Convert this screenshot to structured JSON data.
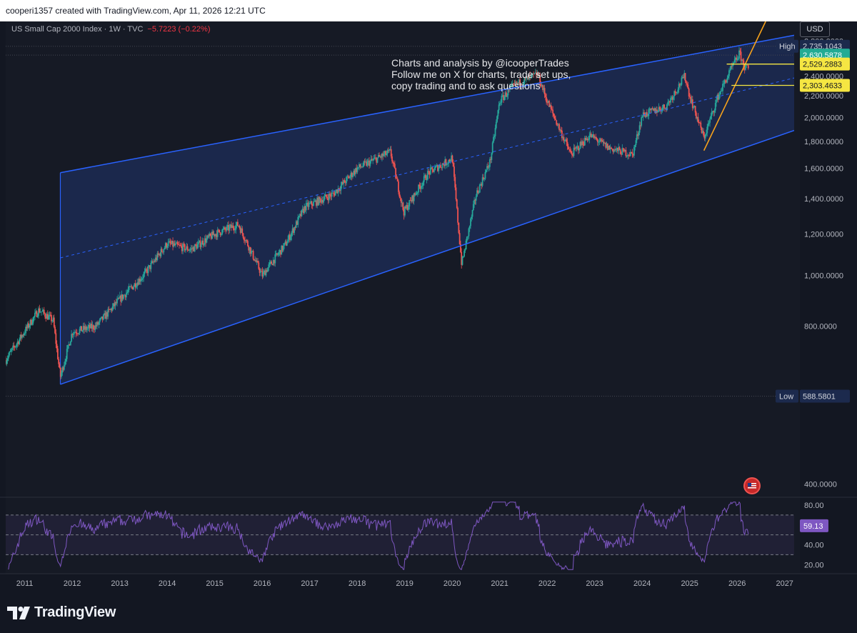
{
  "header": {
    "attribution": "cooperi1357 created with TradingView.com, Apr 11, 2026 12:21 UTC"
  },
  "legend": {
    "symbol": "US Small Cap 2000 Index · 1W · TVC",
    "change": "−5.7223 (−0.22%)"
  },
  "currency": "USD",
  "annotation": {
    "text": "Charts and analysis by @icooperTrades\nFollow me on X for charts, trade set ups,\ncopy trading and to ask questions"
  },
  "logo": {
    "text": "TradingView"
  },
  "colors": {
    "background": "#161a25",
    "channel": "#2962ff",
    "channel_fill": "#1e2d5a",
    "trendline": "#f7a21b",
    "level": "#f5e642",
    "rsi": "#7e57c2",
    "up": "#26a69a",
    "down": "#ef5350"
  },
  "chart_data": {
    "type": "candlestick",
    "series_name": "US Small Cap 2000 Index",
    "timeframe": "1W",
    "x_range": [
      2010.6,
      2027.2
    ],
    "x_ticks": [
      "2011",
      "2012",
      "2013",
      "2014",
      "2015",
      "2016",
      "2017",
      "2018",
      "2019",
      "2020",
      "2021",
      "2022",
      "2023",
      "2024",
      "2025",
      "2026",
      "2027"
    ],
    "y_scale": "log",
    "y_range": [
      380,
      3050
    ],
    "y_ticks": [
      "2,800.0000",
      "2,600.0000",
      "2,400.0000",
      "2,200.0000",
      "2,000.0000",
      "1,800.0000",
      "1,600.0000",
      "1,400.0000",
      "1,200.0000",
      "1,000.0000",
      "800.0000",
      "400.0000"
    ],
    "approx_close_path": [
      [
        2010.6,
        690
      ],
      [
        2011.3,
        860
      ],
      [
        2011.6,
        820
      ],
      [
        2011.75,
        640
      ],
      [
        2012.0,
        780
      ],
      [
        2012.5,
        800
      ],
      [
        2013.0,
        900
      ],
      [
        2013.5,
        1000
      ],
      [
        2014.0,
        1150
      ],
      [
        2014.5,
        1120
      ],
      [
        2015.0,
        1200
      ],
      [
        2015.5,
        1250
      ],
      [
        2016.0,
        1000
      ],
      [
        2016.5,
        1150
      ],
      [
        2016.9,
        1350
      ],
      [
        2017.5,
        1430
      ],
      [
        2018.0,
        1600
      ],
      [
        2018.7,
        1720
      ],
      [
        2018.98,
        1320
      ],
      [
        2019.5,
        1570
      ],
      [
        2019.9,
        1650
      ],
      [
        2020.0,
        1680
      ],
      [
        2020.2,
        1050
      ],
      [
        2020.5,
        1420
      ],
      [
        2020.8,
        1650
      ],
      [
        2021.0,
        2150
      ],
      [
        2021.3,
        2300
      ],
      [
        2021.8,
        2420
      ],
      [
        2022.0,
        2150
      ],
      [
        2022.5,
        1700
      ],
      [
        2022.9,
        1850
      ],
      [
        2023.3,
        1750
      ],
      [
        2023.8,
        1700
      ],
      [
        2024.0,
        2020
      ],
      [
        2024.5,
        2100
      ],
      [
        2024.9,
        2400
      ],
      [
        2025.0,
        2200
      ],
      [
        2025.3,
        1830
      ],
      [
        2025.6,
        2200
      ],
      [
        2025.9,
        2500
      ],
      [
        2026.05,
        2650
      ],
      [
        2026.15,
        2500
      ],
      [
        2026.25,
        2470
      ]
    ],
    "price_labels": [
      {
        "label": "High",
        "value": "2,735.1043"
      },
      {
        "value": "2,630.5878"
      },
      {
        "value": "2,529.2883"
      },
      {
        "value": "2,303.4633"
      },
      {
        "label": "Low",
        "value": "588.5801"
      }
    ],
    "channel": {
      "upper": [
        [
          2011.75,
          1570
        ],
        [
          2027.2,
          2870
        ]
      ],
      "lower": [
        [
          2011.75,
          620
        ],
        [
          2027.2,
          1890
        ]
      ],
      "median": [
        [
          2011.75,
          1080
        ],
        [
          2027.2,
          2380
        ]
      ]
    },
    "trendline": [
      [
        2025.3,
        1730
      ],
      [
        2026.6,
        3050
      ]
    ],
    "horizontal_levels": [
      {
        "value": 2529.2883,
        "from": 2025.78
      },
      {
        "value": 2303.4633,
        "from": 2025.88
      }
    ],
    "rsi": {
      "value": "59.13",
      "y_ticks": [
        "80.00",
        "40.00",
        "20.00"
      ],
      "bands": [
        70,
        50,
        30
      ],
      "range": [
        13,
        85
      ]
    }
  }
}
